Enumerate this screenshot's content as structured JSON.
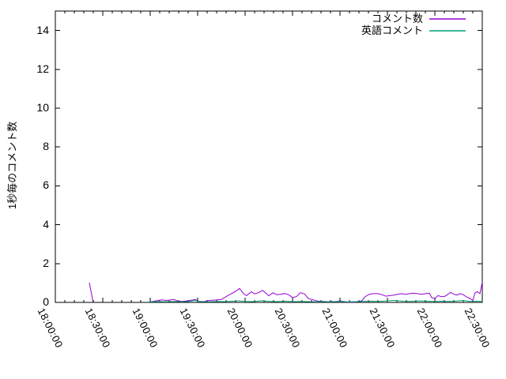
{
  "chart_data": {
    "type": "line",
    "title": "",
    "ylabel": "1秒毎のコメント数",
    "xlabel": "",
    "ylim": [
      0,
      15
    ],
    "y_ticks": [
      0,
      2,
      4,
      6,
      8,
      10,
      12,
      14
    ],
    "xlim_minutes": [
      0,
      270
    ],
    "x_major_step_min": 30,
    "x_minor_step_min": 6,
    "x_tick_labels": [
      "18:00:00",
      "18:30:00",
      "19:00:00",
      "19:30:00",
      "20:00:00",
      "20:30:00",
      "21:00:00",
      "21:30:00",
      "22:00:00",
      "22:30:00"
    ],
    "grid": false,
    "legend_position": "top-right-inside",
    "axis_color": "#000000",
    "background_color": "#ffffff",
    "series": [
      {
        "name": "コメント数",
        "color": "#9400d3",
        "segments": [
          [
            [
              21.5,
              1.02
            ],
            [
              22.3,
              0.68
            ],
            [
              23.2,
              0.3
            ],
            [
              23.8,
              0.03
            ]
          ],
          [
            [
              59,
              0.02
            ],
            [
              62.5,
              0.06
            ],
            [
              65,
              0.1
            ],
            [
              67.5,
              0.13
            ],
            [
              70,
              0.09
            ],
            [
              72.5,
              0.12
            ],
            [
              75,
              0.15
            ],
            [
              77.5,
              0.07
            ],
            [
              80,
              0.05
            ],
            [
              82.5,
              0.07
            ],
            [
              85,
              0.1
            ],
            [
              87.5,
              0.13
            ],
            [
              88.5,
              0.15
            ],
            [
              91,
              0.05
            ],
            [
              94,
              0.04
            ],
            [
              97.5,
              0.1
            ],
            [
              101,
              0.12
            ],
            [
              105,
              0.15
            ],
            [
              109,
              0.35
            ],
            [
              112.5,
              0.5
            ],
            [
              115,
              0.62
            ],
            [
              116.5,
              0.72
            ],
            [
              119,
              0.45
            ],
            [
              121,
              0.35
            ],
            [
              124,
              0.55
            ],
            [
              126,
              0.44
            ],
            [
              128.5,
              0.5
            ],
            [
              131,
              0.62
            ],
            [
              133.5,
              0.45
            ],
            [
              135,
              0.34
            ],
            [
              137.5,
              0.5
            ],
            [
              140,
              0.4
            ],
            [
              142.5,
              0.42
            ],
            [
              145,
              0.46
            ],
            [
              147.5,
              0.4
            ],
            [
              150,
              0.25
            ],
            [
              152.5,
              0.3
            ],
            [
              155,
              0.5
            ],
            [
              157.5,
              0.44
            ],
            [
              160,
              0.2
            ],
            [
              162.5,
              0.15
            ],
            [
              165,
              0.08
            ],
            [
              167.5,
              0.05
            ],
            [
              170,
              0.05
            ],
            [
              172.5,
              0.03
            ],
            [
              175,
              0.05
            ],
            [
              177.5,
              0.03
            ],
            [
              180,
              0.09
            ],
            [
              182.5,
              0.03
            ],
            [
              185,
              0.02
            ],
            [
              187.5,
              0.02
            ],
            [
              190,
              0.02
            ],
            [
              192.5,
              0.05
            ],
            [
              194,
              0.1
            ],
            [
              196,
              0.3
            ],
            [
              198.5,
              0.42
            ],
            [
              201,
              0.45
            ],
            [
              204,
              0.45
            ],
            [
              206.5,
              0.4
            ],
            [
              209,
              0.32
            ],
            [
              211.5,
              0.35
            ],
            [
              214,
              0.38
            ],
            [
              216.5,
              0.42
            ],
            [
              219,
              0.45
            ],
            [
              221.5,
              0.42
            ],
            [
              224,
              0.45
            ],
            [
              226.5,
              0.48
            ],
            [
              229,
              0.45
            ],
            [
              231.5,
              0.42
            ],
            [
              234,
              0.45
            ],
            [
              236.5,
              0.47
            ],
            [
              238,
              0.25
            ],
            [
              240,
              0.2
            ],
            [
              242,
              0.35
            ],
            [
              244,
              0.3
            ],
            [
              246,
              0.3
            ],
            [
              248,
              0.4
            ],
            [
              250,
              0.52
            ],
            [
              252,
              0.42
            ],
            [
              254,
              0.38
            ],
            [
              256,
              0.45
            ],
            [
              258,
              0.4
            ],
            [
              260,
              0.28
            ],
            [
              262,
              0.22
            ],
            [
              264,
              0.1
            ],
            [
              265.5,
              0.5
            ],
            [
              267,
              0.55
            ],
            [
              268.5,
              0.45
            ],
            [
              270,
              1.05
            ]
          ]
        ]
      },
      {
        "name": "英語コメント",
        "color": "#009e73",
        "segments": [
          [
            [
              59,
              0.02
            ],
            [
              65,
              0.04
            ],
            [
              70,
              0.03
            ],
            [
              75,
              0.05
            ],
            [
              80,
              0.03
            ],
            [
              85,
              0.05
            ],
            [
              88,
              0.1
            ],
            [
              92,
              0.04
            ],
            [
              97,
              0.03
            ],
            [
              102,
              0.05
            ],
            [
              107,
              0.04
            ],
            [
              112,
              0.06
            ],
            [
              116,
              0.08
            ],
            [
              120,
              0.05
            ],
            [
              125,
              0.04
            ],
            [
              130,
              0.08
            ],
            [
              135,
              0.05
            ],
            [
              140,
              0.04
            ],
            [
              145,
              0.06
            ],
            [
              150,
              0.04
            ],
            [
              155,
              0.05
            ],
            [
              160,
              0.04
            ],
            [
              165,
              0.03
            ],
            [
              170,
              0.04
            ],
            [
              175,
              0.03
            ],
            [
              180,
              0.06
            ],
            [
              185,
              0.03
            ],
            [
              190,
              0.04
            ],
            [
              195,
              0.05
            ],
            [
              200,
              0.06
            ],
            [
              205,
              0.05
            ],
            [
              210,
              0.08
            ],
            [
              215,
              0.1
            ],
            [
              220,
              0.06
            ],
            [
              225,
              0.05
            ],
            [
              230,
              0.08
            ],
            [
              235,
              0.06
            ],
            [
              240,
              0.05
            ],
            [
              245,
              0.06
            ],
            [
              250,
              0.05
            ],
            [
              255,
              0.08
            ],
            [
              258,
              0.1
            ],
            [
              262,
              0.05
            ],
            [
              266,
              0.06
            ],
            [
              270,
              0.05
            ]
          ]
        ]
      }
    ]
  }
}
